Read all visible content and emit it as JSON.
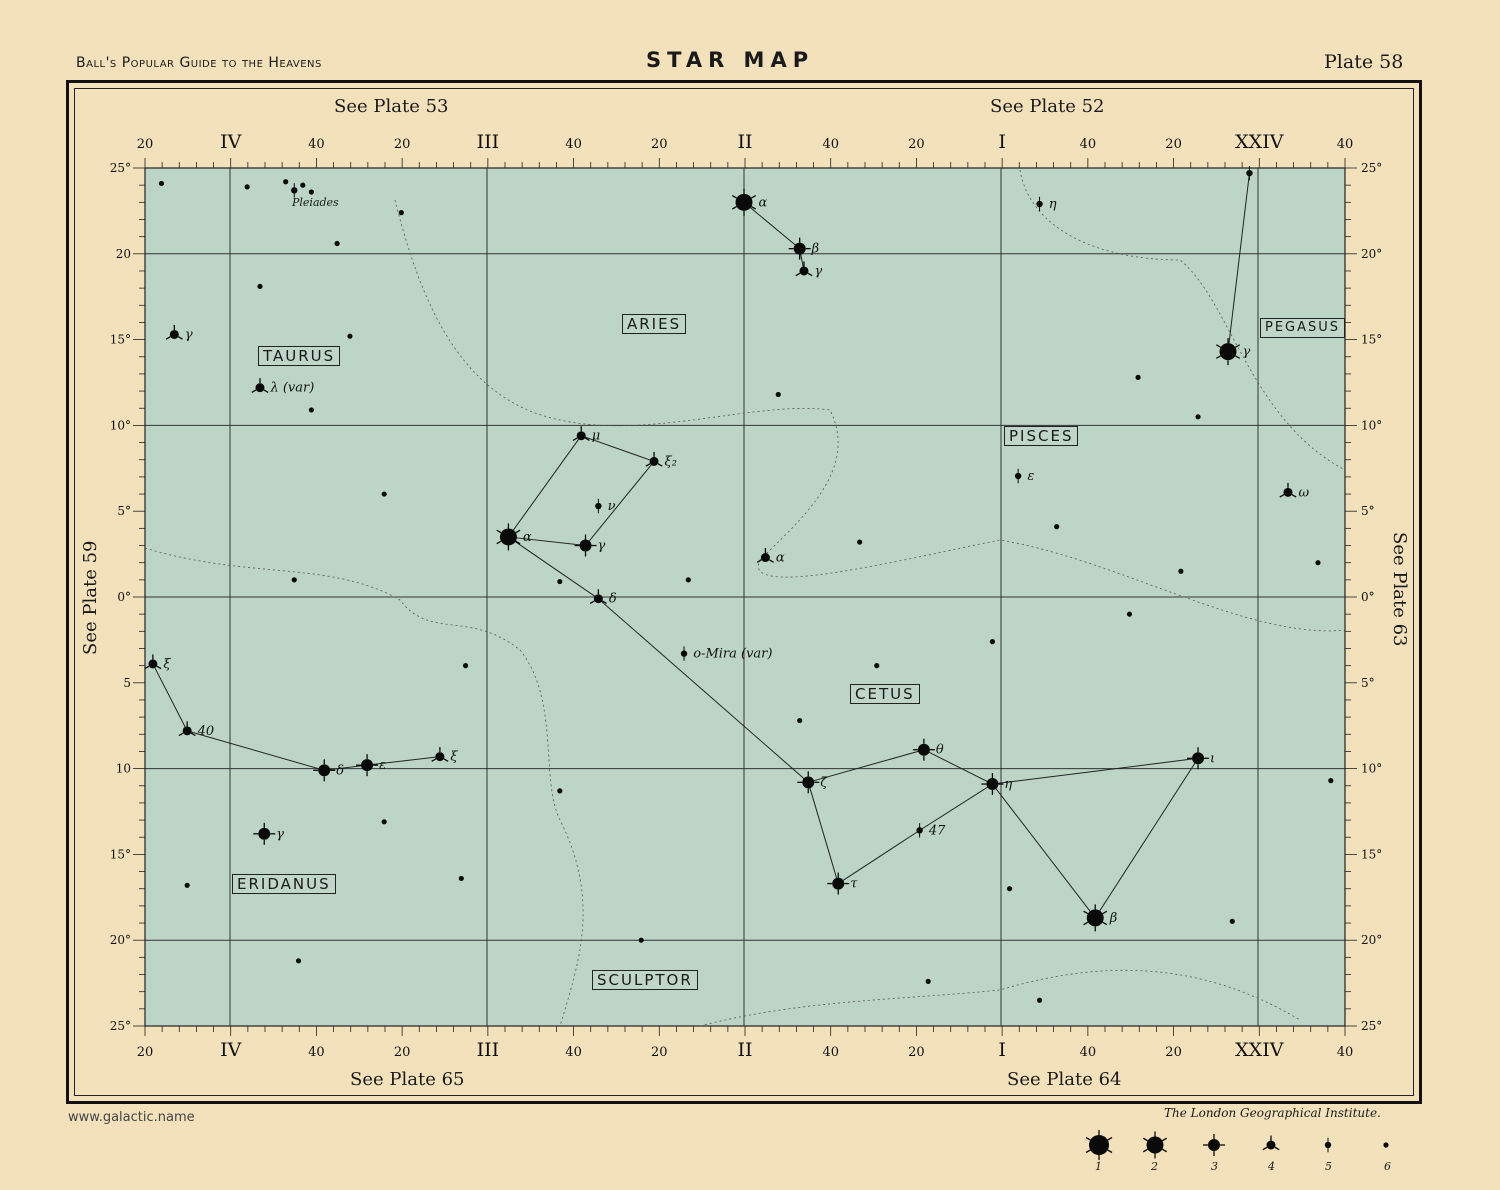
{
  "header": {
    "left": "Ball's Popular Guide to the Heavens",
    "title": "STAR MAP",
    "plate": "Plate 58"
  },
  "cross_refs": {
    "top_left": "See Plate 53",
    "top_right": "See Plate 52",
    "bottom_left": "See Plate 65",
    "bottom_right": "See Plate 64",
    "left": "See Plate 59",
    "right": "See Plate 63"
  },
  "footer": {
    "url": "www.galactic.name",
    "publisher": "The London Geographical Institute."
  },
  "colors": {
    "paper": "#f2e1bb",
    "map_fill": "#bcd5c6",
    "ink": "#111111"
  },
  "map": {
    "ra_range": [
      "4h20m",
      "23h40m"
    ],
    "dec_range": [
      -25,
      25
    ],
    "ra_labels": [
      "20",
      "IV",
      "40",
      "20",
      "III",
      "40",
      "20",
      "II",
      "40",
      "20",
      "I",
      "40",
      "20",
      "XXIV",
      "40"
    ],
    "dec_labels_left": [
      "25°",
      "20",
      "15°",
      "10°",
      "5°",
      "0°",
      "5",
      "10",
      "15°",
      "20°",
      "25°"
    ],
    "dec_labels_right": [
      "25°",
      "20°",
      "15°",
      "10°",
      "5°",
      "0°",
      "5°",
      "10°",
      "15°",
      "20°",
      "25°"
    ],
    "constellations": [
      "TAURUS",
      "ARIES",
      "PISCES",
      "PEGASUS",
      "CETUS",
      "ERIDANUS",
      "SCULPTOR"
    ],
    "pleiades_label": "Pleiades",
    "stars": [
      {
        "id": "alpha-ari",
        "label": "α",
        "ra_h": 2,
        "ra_m": 0,
        "dec": 23.0,
        "mag": 2
      },
      {
        "id": "beta-ari",
        "label": "β",
        "ra_h": 1,
        "ra_m": 47,
        "dec": 20.3,
        "mag": 3
      },
      {
        "id": "gamma-ari",
        "label": "γ",
        "ra_h": 1,
        "ra_m": 46,
        "dec": 19.0,
        "mag": 4
      },
      {
        "id": "alpha-cet",
        "label": "α",
        "ra_h": 2,
        "ra_m": 55,
        "dec": 3.5,
        "mag": 2
      },
      {
        "id": "gamma-cet",
        "label": "γ",
        "ra_h": 2,
        "ra_m": 37,
        "dec": 3.0,
        "mag": 3
      },
      {
        "id": "delta-cet",
        "label": "δ",
        "ra_h": 2,
        "ra_m": 34,
        "dec": -0.1,
        "mag": 4
      },
      {
        "id": "mu-cet",
        "label": "μ",
        "ra_h": 2,
        "ra_m": 38,
        "dec": 9.4,
        "mag": 4
      },
      {
        "id": "xi2-cet",
        "label": "ξ₂",
        "ra_h": 2,
        "ra_m": 21,
        "dec": 7.9,
        "mag": 4
      },
      {
        "id": "nu-cet",
        "label": "ν",
        "ra_h": 2,
        "ra_m": 34,
        "dec": 5.3,
        "mag": 5
      },
      {
        "id": "zeta-cet",
        "label": "ζ",
        "ra_h": 1,
        "ra_m": 45,
        "dec": -10.8,
        "mag": 3
      },
      {
        "id": "tau-cet",
        "label": "τ",
        "ra_h": 1,
        "ra_m": 38,
        "dec": -16.7,
        "mag": 3
      },
      {
        "id": "theta-cet",
        "label": "θ",
        "ra_h": 1,
        "ra_m": 18,
        "dec": -8.9,
        "mag": 3
      },
      {
        "id": "eta-cet",
        "label": "η",
        "ra_h": 1,
        "ra_m": 2,
        "dec": -10.9,
        "mag": 3
      },
      {
        "id": "iota-cet",
        "label": "ι",
        "ra_h": 0,
        "ra_m": 14,
        "dec": -9.4,
        "mag": 3
      },
      {
        "id": "beta-cet",
        "label": "β",
        "ra_h": 0,
        "ra_m": 38,
        "dec": -18.7,
        "mag": 2
      },
      {
        "id": "47-cet",
        "label": "47",
        "ra_h": 1,
        "ra_m": 19,
        "dec": -13.6,
        "mag": 5
      },
      {
        "id": "mira",
        "label": "ο-Mira (var)",
        "ra_h": 2,
        "ra_m": 14,
        "dec": -3.3,
        "mag": 5
      },
      {
        "id": "gamma-peg",
        "label": "γ",
        "ra_h": 0,
        "ra_m": 7,
        "dec": 14.3,
        "mag": 2
      },
      {
        "id": "alpha-and",
        "label": "",
        "ra_h": 0,
        "ra_m": 2,
        "dec": 24.7,
        "mag": 5
      },
      {
        "id": "eri-1",
        "label": "ξ",
        "ra_h": 4,
        "ra_m": 18,
        "dec": -3.9,
        "mag": 4
      },
      {
        "id": "eri-2",
        "label": "40",
        "ra_h": 4,
        "ra_m": 10,
        "dec": -7.8,
        "mag": 4
      },
      {
        "id": "delta-eri",
        "label": "δ",
        "ra_h": 3,
        "ra_m": 38,
        "dec": -10.1,
        "mag": 3
      },
      {
        "id": "epsilon-eri",
        "label": "ε",
        "ra_h": 3,
        "ra_m": 28,
        "dec": -9.8,
        "mag": 3
      },
      {
        "id": "eri-xi",
        "label": "ξ",
        "ra_h": 3,
        "ra_m": 11,
        "dec": -9.3,
        "mag": 4
      },
      {
        "id": "gamma-eri",
        "label": "γ",
        "ra_h": 3,
        "ra_m": 52,
        "dec": -13.8,
        "mag": 3
      },
      {
        "id": "gamma-tau",
        "label": "γ",
        "ra_h": 4,
        "ra_m": 13,
        "dec": 15.3,
        "mag": 4
      },
      {
        "id": "lambda-tau",
        "label": "λ (var)",
        "ra_h": 3,
        "ra_m": 53,
        "dec": 12.2,
        "mag": 4
      },
      {
        "id": "eta-psc",
        "label": "η",
        "ra_h": 0,
        "ra_m": 51,
        "dec": 22.9,
        "mag": 5
      },
      {
        "id": "epsilon-psc",
        "label": "ε",
        "ra_h": 0,
        "ra_m": 56,
        "dec": 7.05,
        "mag": 5
      },
      {
        "id": "omega-psc",
        "label": "ω",
        "ra_h": 23,
        "ra_m": 53,
        "dec": 6.1,
        "mag": 4
      },
      {
        "id": "alpha-psc",
        "label": "α",
        "ra_h": 1,
        "ra_m": 55,
        "dec": 2.3,
        "mag": 4
      },
      {
        "id": "pleiades-1",
        "label": "",
        "ra_h": 3,
        "ra_m": 45,
        "dec": 23.7,
        "mag": 5
      },
      {
        "id": "pleiades-2",
        "label": "",
        "ra_h": 3,
        "ra_m": 43,
        "dec": 24.0,
        "mag": 6
      },
      {
        "id": "pleiades-3",
        "label": "",
        "ra_h": 3,
        "ra_m": 47,
        "dec": 24.2,
        "mag": 6
      },
      {
        "id": "pleiades-4",
        "label": "",
        "ra_h": 3,
        "ra_m": 41,
        "dec": 23.6,
        "mag": 6
      }
    ],
    "faint_stars": [
      [
        4,
        16,
        24.1
      ],
      [
        3,
        56,
        23.9
      ],
      [
        3,
        20,
        22.4
      ],
      [
        3,
        35,
        20.6
      ],
      [
        3,
        53,
        18.1
      ],
      [
        3,
        32,
        15.2
      ],
      [
        3,
        41,
        10.9
      ],
      [
        3,
        24,
        6.0
      ],
      [
        3,
        45,
        1.0
      ],
      [
        3,
        5,
        -4.0
      ],
      [
        3,
        24,
        -13.1
      ],
      [
        3,
        6,
        -16.4
      ],
      [
        4,
        10,
        -16.8
      ],
      [
        3,
        44,
        -21.2
      ],
      [
        2,
        43,
        0.9
      ],
      [
        2,
        13,
        1.0
      ],
      [
        1,
        52,
        11.8
      ],
      [
        1,
        33,
        3.2
      ],
      [
        1,
        29,
        -4.0
      ],
      [
        1,
        47,
        -7.2
      ],
      [
        1,
        2,
        -2.6
      ],
      [
        0,
        30,
        -1.0
      ],
      [
        0,
        47,
        4.1
      ],
      [
        0,
        28,
        12.8
      ],
      [
        0,
        14,
        10.5
      ],
      [
        0,
        58,
        -17.0
      ],
      [
        0,
        6,
        -18.9
      ],
      [
        23,
        43,
        -10.7
      ],
      [
        23,
        46,
        2.0
      ],
      [
        1,
        17,
        -22.4
      ],
      [
        2,
        24,
        -20.0
      ],
      [
        2,
        43,
        -11.3
      ],
      [
        0,
        18,
        1.5
      ],
      [
        0,
        51,
        -23.5
      ]
    ],
    "figures": [
      [
        "alpha-ari",
        "beta-ari"
      ],
      [
        "beta-ari",
        "gamma-ari"
      ],
      [
        "alpha-cet",
        "mu-cet"
      ],
      [
        "mu-cet",
        "xi2-cet"
      ],
      [
        "xi2-cet",
        "gamma-cet"
      ],
      [
        "gamma-cet",
        "alpha-cet"
      ],
      [
        "alpha-cet",
        "delta-cet"
      ],
      [
        "delta-cet",
        "zeta-cet"
      ],
      [
        "zeta-cet",
        "tau-cet"
      ],
      [
        "tau-cet",
        "47-cet"
      ],
      [
        "47-cet",
        "eta-cet"
      ],
      [
        "zeta-cet",
        "theta-cet"
      ],
      [
        "theta-cet",
        "eta-cet"
      ],
      [
        "eta-cet",
        "iota-cet"
      ],
      [
        "iota-cet",
        "beta-cet"
      ],
      [
        "beta-cet",
        "eta-cet"
      ],
      [
        "eri-1",
        "eri-2"
      ],
      [
        "eri-2",
        "delta-eri"
      ],
      [
        "delta-eri",
        "epsilon-eri"
      ],
      [
        "epsilon-eri",
        "eri-xi"
      ],
      [
        "gamma-peg",
        "alpha-and"
      ]
    ]
  },
  "legend": {
    "title": "",
    "magnitudes": [
      "1",
      "2",
      "3",
      "4",
      "5",
      "6"
    ]
  }
}
